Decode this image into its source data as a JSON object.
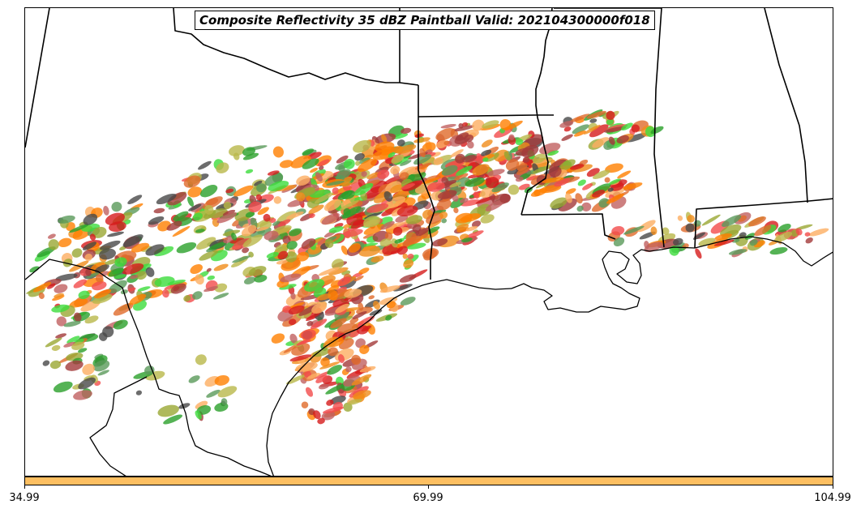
{
  "map": {
    "title": "Composite Reflectivity 35 dBZ Paintball Valid: 202104300000f018"
  },
  "colorbar": {
    "color": "#fdbf61",
    "tick_labels": [
      "34.99",
      "69.99",
      "104.99"
    ]
  },
  "palette": {
    "members": [
      "#d61c1c",
      "#f24b4b",
      "#ff7f00",
      "#f08c1a",
      "#fdae61",
      "#a33a3a",
      "#c06060",
      "#b9b84a",
      "#9aa833",
      "#2aa02a",
      "#3cdc3c",
      "#5a9a5a",
      "#484848",
      "#e06a2a"
    ]
  }
}
